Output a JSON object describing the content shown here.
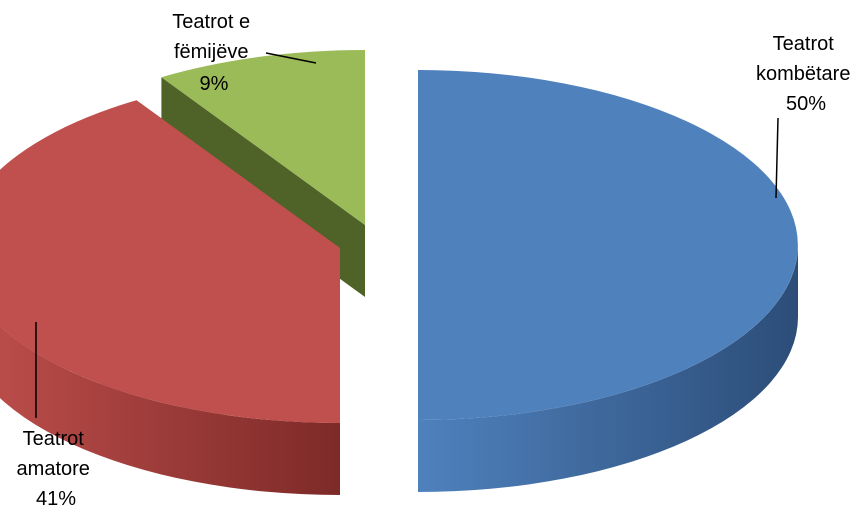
{
  "chart_data": {
    "type": "pie",
    "style": "3d-exploded",
    "title": "",
    "slices": [
      {
        "label_lines": [
          "Teatrot",
          "kombëtare"
        ],
        "value": 50,
        "pct_text": "50%",
        "color": "#4f81bd",
        "side_color": "#2c4d78"
      },
      {
        "label_lines": [
          "Teatrot",
          "amatore"
        ],
        "value": 41,
        "pct_text": "41%",
        "color": "#c0504d",
        "side_color": "#7d2a28"
      },
      {
        "label_lines": [
          "Teatrot e",
          "fëmijëve"
        ],
        "value": 9,
        "pct_text": "9%",
        "color": "#9bbb59",
        "side_color": "#4f6228"
      }
    ]
  }
}
